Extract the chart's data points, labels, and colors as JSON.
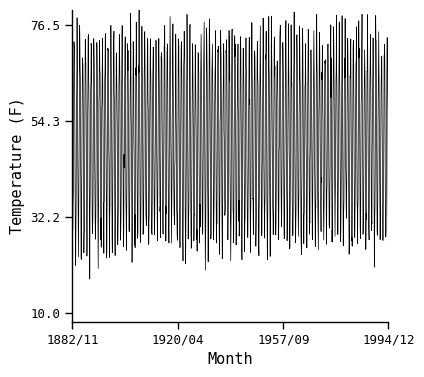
{
  "title": "",
  "xlabel": "Month",
  "ylabel": "Temperature (F)",
  "xlim_labels": [
    "1882/11",
    "1920/04",
    "1957/09",
    "1994/12"
  ],
  "ylim": [
    8.0,
    80.0
  ],
  "yticks": [
    10.0,
    32.2,
    54.3,
    76.5
  ],
  "ytick_labels": [
    "10.0",
    "32.2",
    "54.3",
    "76.5"
  ],
  "line_color": "#000000",
  "line_width": 0.5,
  "bg_color": "#ffffff",
  "start_year": 1882,
  "start_month": 11,
  "end_year": 1994,
  "end_month": 12,
  "mean_temp": 50.0,
  "amplitude": 23.0,
  "noise_std": 3.5,
  "font_size_tick": 9,
  "font_size_label": 11
}
